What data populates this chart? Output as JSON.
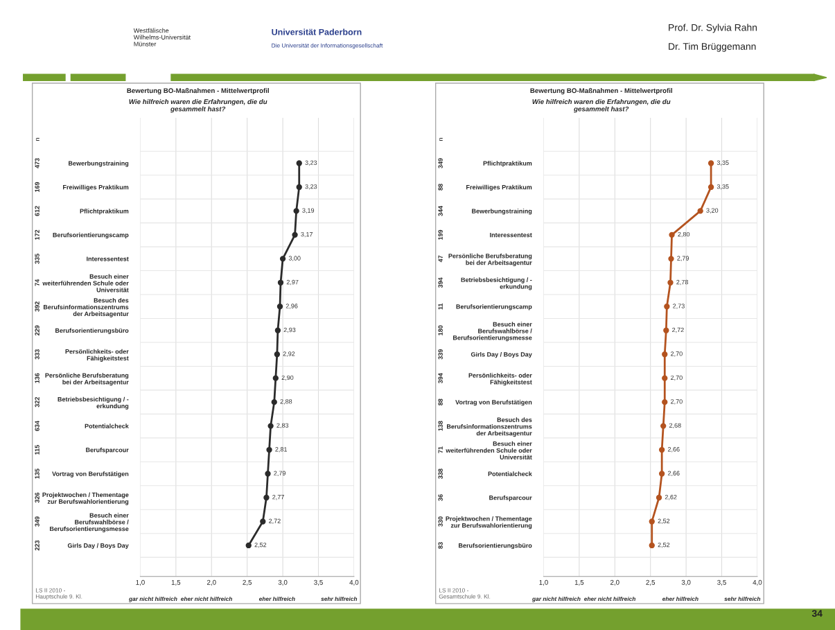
{
  "chart_data": [
    {
      "type": "line",
      "title": "Bewertung BO-Maßnahmen - Mittelwertprofil",
      "subtitle": "Wie hilfreich waren die Erfahrungen, die du\ngesammelt hast?",
      "categories": [
        "Bewerbungstraining",
        "Freiwilliges Praktikum",
        "Pflichtpraktikum",
        "Berufsorientierungscamp",
        "Interessentest",
        "Besuch einer\nweiterführenden Schule oder\nUniversität",
        "Besuch des\nBerufsinformationszentrums\nder Arbeitsagentur",
        "Berufsorientierungsbüro",
        "Persönlichkeits- oder\nFähigkeitstest",
        "Persönliche Berufsberatung\nbei der Arbeitsagentur",
        "Betriebsbesichtigung / -\nerkundung",
        "Potentialcheck",
        "Berufsparcour",
        "Vortrag von Berufstätigen",
        "Projektwochen / Thementage\nzur Berufswahlorientierung",
        "Besuch einer\nBerufswahlbörse /\nBerufsorientierungsmesse",
        "Girls Day / Boys Day"
      ],
      "series": [
        {
          "color": "#2b2b2b",
          "values": [
            3.23,
            3.23,
            3.19,
            3.17,
            3.0,
            2.97,
            2.96,
            2.93,
            2.92,
            2.9,
            2.88,
            2.83,
            2.81,
            2.79,
            2.77,
            2.72,
            2.52
          ],
          "value_labels": [
            "3,23",
            "3,23",
            "3,19",
            "3,17",
            "3,00",
            "2,97",
            "2,96",
            "2,93",
            "2,92",
            "2,90",
            "2,88",
            "2,83",
            "2,81",
            "2,79",
            "2,77",
            "2,72",
            "2,52"
          ]
        }
      ],
      "orientation": "horizontal",
      "marker": "circle",
      "line_style": "solid",
      "grid": true,
      "legend": false,
      "xlim": [
        1.0,
        4.0
      ],
      "xticks": [
        {
          "value": 1.0,
          "label": "1,0"
        },
        {
          "value": 1.5,
          "label": "1,5"
        },
        {
          "value": 2.0,
          "label": "2,0"
        },
        {
          "value": 2.5,
          "label": "2,5"
        },
        {
          "value": 3.0,
          "label": "3,0"
        },
        {
          "value": 3.5,
          "label": "3,5"
        },
        {
          "value": 4.0,
          "label": "4,0"
        }
      ],
      "annotations": [
        "n",
        "gar nicht hilfreich",
        "eher nicht hilfreich",
        "eher hilfreich",
        "sehr hilfreich",
        "LS II 2010 -\nHauptschule 9. Kl.",
        "Westfälische\nWilhelms-Universität\nMünster",
        "Universität Paderborn",
        "Die Universität der Informationsgesellschaft",
        "Prof. Dr. Sylvia Rahn",
        "Dr. Tim Brüggemann",
        "34",
        "473",
        "169",
        "612",
        "172",
        "335",
        "74",
        "392",
        "229",
        "333",
        "136",
        "322",
        "634",
        "115",
        "135",
        "326",
        "349",
        "223"
      ]
    },
    {
      "type": "line",
      "title": "Bewertung BO-Maßnahmen - Mittelwertprofil",
      "subtitle": "Wie hilfreich waren die Erfahrungen, die du\ngesammelt hast?",
      "categories": [
        "Pflichtpraktikum",
        "Freiwilliges Praktikum",
        "Bewerbungstraining",
        "Interessentest",
        "Persönliche Berufsberatung\nbei der Arbeitsagentur",
        "Betriebsbesichtigung / -\nerkundung",
        "Berufsorientierungscamp",
        "Besuch einer\nBerufswahlbörse /\nBerufsorientierungsmesse",
        "Girls Day / Boys Day",
        "Persönlichkeits- oder\nFähigkeitstest",
        "Vortrag von Berufstätigen",
        "Besuch des\nBerufsinformationszentrums\nder Arbeitsagentur",
        "Besuch einer\nweiterführenden Schule oder\nUniversität",
        "Potentialcheck",
        "Berufsparcour",
        "Projektwochen / Thementage\nzur Berufswahlorientierung",
        "Berufsorientierungsbüro"
      ],
      "series": [
        {
          "color": "#b4531f",
          "values": [
            3.35,
            3.35,
            3.2,
            2.8,
            2.79,
            2.78,
            2.73,
            2.72,
            2.7,
            2.7,
            2.7,
            2.68,
            2.66,
            2.66,
            2.62,
            2.52,
            2.52
          ],
          "value_labels": [
            "3,35",
            "3,35",
            "3,20",
            "2,80",
            "2,79",
            "2,78",
            "2,73",
            "2,72",
            "2,70",
            "2,70",
            "2,70",
            "2,68",
            "2,66",
            "2,66",
            "2,62",
            "2,52",
            "2,52"
          ]
        }
      ],
      "orientation": "horizontal",
      "marker": "circle",
      "line_style": "solid",
      "grid": true,
      "legend": false,
      "xlim": [
        1.0,
        4.0
      ],
      "xticks": [
        {
          "value": 1.0,
          "label": "1,0"
        },
        {
          "value": 1.5,
          "label": "1,5"
        },
        {
          "value": 2.0,
          "label": "2,0"
        },
        {
          "value": 2.5,
          "label": "2,5"
        },
        {
          "value": 3.0,
          "label": "3,0"
        },
        {
          "value": 3.5,
          "label": "3,5"
        },
        {
          "value": 4.0,
          "label": "4,0"
        }
      ],
      "annotations": [
        "n",
        "gar nicht hilfreich",
        "eher nicht hilfreich",
        "eher hilfreich",
        "sehr hilfreich",
        "LS II 2010 -\nGesamtschule 9. Kl.",
        "349",
        "88",
        "344",
        "199",
        "47",
        "394",
        "11",
        "180",
        "339",
        "394",
        "88",
        "138",
        "71",
        "338",
        "36",
        "330",
        "83"
      ]
    }
  ]
}
